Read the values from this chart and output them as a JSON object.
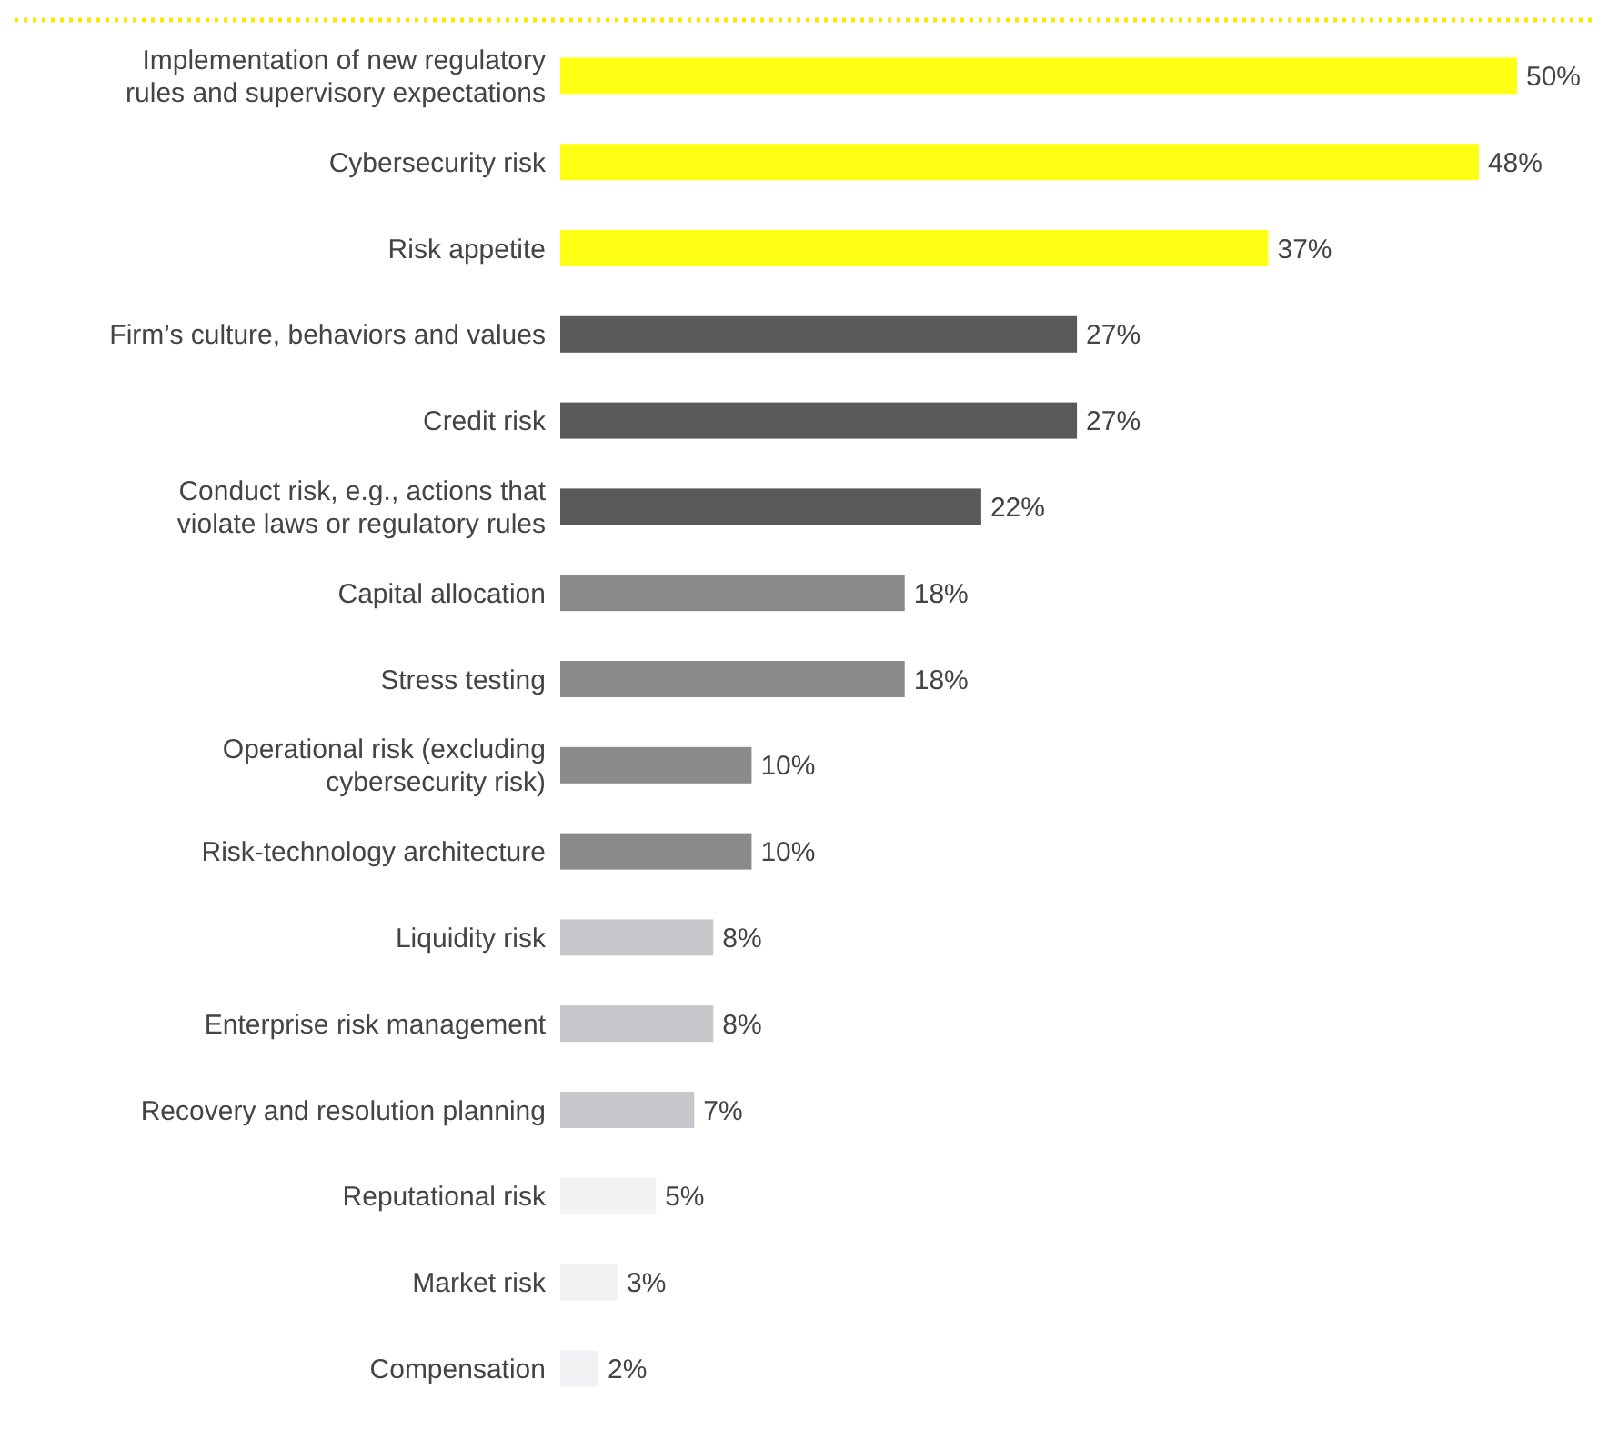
{
  "chart_data": {
    "type": "bar",
    "orientation": "horizontal",
    "categories": [
      "Implementation of new regulatory rules and supervisory expectations",
      "Cybersecurity risk",
      "Risk appetite",
      "Firm’s culture, behaviors and values",
      "Credit risk",
      "Conduct risk, e.g., actions that violate laws or regulatory rules",
      "Capital allocation",
      "Stress testing",
      "Operational risk (excluding cybersecurity risk)",
      "Risk-technology architecture",
      "Liquidity risk",
      "Enterprise risk management",
      "Recovery and resolution planning",
      "Reputational risk",
      "Market risk",
      "Compensation"
    ],
    "values": [
      50,
      48,
      37,
      27,
      27,
      22,
      18,
      18,
      10,
      10,
      8,
      8,
      7,
      5,
      3,
      2
    ],
    "colors": [
      "#ffff14",
      "#ffff14",
      "#ffff14",
      "#5a5a5a",
      "#5a5a5a",
      "#5a5a5a",
      "#8a8a8a",
      "#8a8a8a",
      "#8a8a8a",
      "#8a8a8a",
      "#c8c8cc",
      "#c8c8cc",
      "#c8c8cc",
      "#f2f2f4",
      "#f2f2f4",
      "#f2f2f4"
    ],
    "value_labels": [
      "50%",
      "48%",
      "37%",
      "27%",
      "27%",
      "22%",
      "18%",
      "18%",
      "10%",
      "10%",
      "8%",
      "8%",
      "7%",
      "5%",
      "3%",
      "2%"
    ],
    "xlim": [
      0,
      50
    ]
  }
}
